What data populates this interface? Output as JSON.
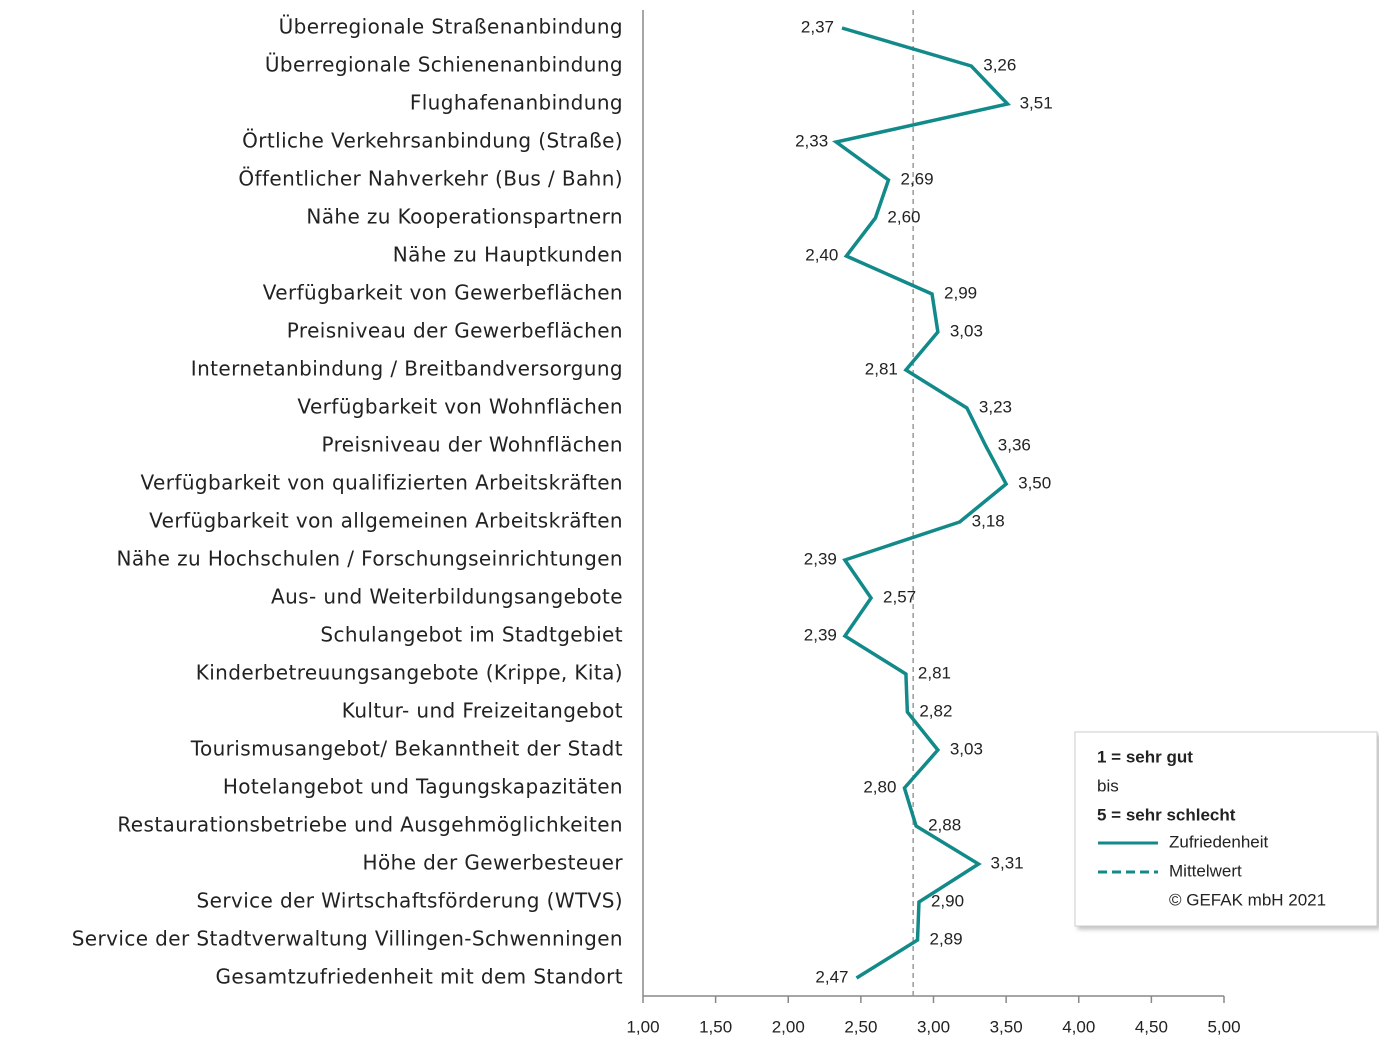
{
  "chart_data": {
    "type": "line",
    "categories": [
      "Überregionale Straßenanbindung",
      "Überregionale Schienenanbindung",
      "Flughafenanbindung",
      "Örtliche Verkehrsanbindung (Straße)",
      "Öffentlicher Nahverkehr (Bus / Bahn)",
      "Nähe zu Kooperationspartnern",
      "Nähe zu Hauptkunden",
      "Verfügbarkeit von Gewerbeflächen",
      "Preisniveau der Gewerbeflächen",
      "Internetanbindung / Breitbandversorgung",
      "Verfügbarkeit von Wohnflächen",
      "Preisniveau der Wohnflächen",
      "Verfügbarkeit von qualifizierten Arbeitskräften",
      "Verfügbarkeit von allgemeinen Arbeitskräften",
      "Nähe zu Hochschulen / Forschungseinrichtungen",
      "Aus- und Weiterbildungsangebote",
      "Schulangebot im Stadtgebiet",
      "Kinderbetreuungsangebote (Krippe, Kita)",
      "Kultur- und Freizeitangebot",
      "Tourismusangebot/ Bekanntheit der Stadt",
      "Hotelangebot und Tagungskapazitäten",
      "Restaurationsbetriebe und Ausgehmöglichkeiten",
      "Höhe der Gewerbesteuer",
      "Service der Wirtschaftsförderung (WTVS)",
      "Service der Stadtverwaltung Villingen-Schwenningen",
      "Gesamtzufriedenheit mit dem Standort"
    ],
    "series": [
      {
        "name": "Zufriedenheit",
        "color": "#138a8a",
        "values": [
          2.37,
          3.26,
          3.51,
          2.33,
          2.69,
          2.6,
          2.4,
          2.99,
          3.03,
          2.81,
          3.23,
          3.36,
          3.5,
          3.18,
          2.39,
          2.57,
          2.39,
          2.81,
          2.82,
          3.03,
          2.8,
          2.88,
          3.31,
          2.9,
          2.89,
          2.47
        ],
        "value_labels": [
          "2,37",
          "3,26",
          "3,51",
          "2,33",
          "2,69",
          "2,60",
          "2,40",
          "2,99",
          "3,03",
          "2,81",
          "3,23",
          "3,36",
          "3,50",
          "3,18",
          "2,39",
          "2,57",
          "2,39",
          "2,81",
          "2,82",
          "3,03",
          "2,80",
          "2,88",
          "3,31",
          "2,90",
          "2,89",
          "2,47"
        ]
      }
    ],
    "mean_line": {
      "name": "Mittelwert",
      "value": 2.86,
      "color": "#999999"
    },
    "xlim": [
      1,
      5
    ],
    "xticks": [
      {
        "value": 1,
        "label": "1,00"
      },
      {
        "value": 1.5,
        "label": "1,50"
      },
      {
        "value": 2,
        "label": "2,00"
      },
      {
        "value": 2.5,
        "label": "2,50"
      },
      {
        "value": 3,
        "label": "3,00"
      },
      {
        "value": 3.5,
        "label": "3,50"
      },
      {
        "value": 4,
        "label": "4,00"
      },
      {
        "value": 4.5,
        "label": "4,50"
      },
      {
        "value": 5,
        "label": "5,00"
      }
    ],
    "legend_notes": [
      "1 = sehr gut",
      "bis",
      "5 = sehr schlecht"
    ],
    "copyright": "© GEFAK mbH 2021",
    "legend_position": "lower right"
  }
}
